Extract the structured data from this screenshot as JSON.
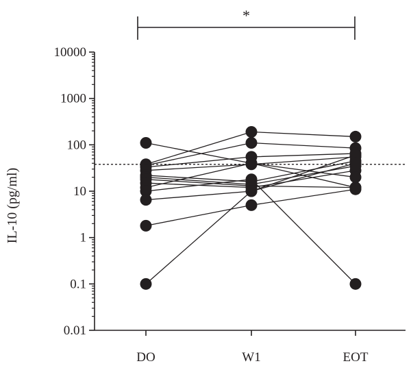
{
  "chart_data": {
    "type": "scatter",
    "ylabel": "IL-10 (pg/ml)",
    "xlabel": "",
    "yscale": "log",
    "ylim": [
      0.01,
      10000
    ],
    "categories": [
      "DO",
      "W1",
      "EOT"
    ],
    "y_ticks": [
      {
        "value": 0.01,
        "label": "0.01"
      },
      {
        "value": 0.1,
        "label": "0.1"
      },
      {
        "value": 1,
        "label": "1"
      },
      {
        "value": 10,
        "label": "10"
      },
      {
        "value": 100,
        "label": "100"
      },
      {
        "value": 1000,
        "label": "1000"
      },
      {
        "value": 10000,
        "label": "10000"
      }
    ],
    "reference_line": {
      "value": 38,
      "style": "dotted"
    },
    "significance": {
      "from": "DO",
      "to": "EOT",
      "label": "*"
    },
    "connected_subjects": [
      [
        110,
        40,
        12
      ],
      [
        38,
        190,
        150
      ],
      [
        36,
        110,
        85
      ],
      [
        33,
        55,
        65
      ],
      [
        28,
        38,
        55
      ],
      [
        22,
        16,
        45
      ],
      [
        20,
        14,
        35
      ],
      [
        18,
        13,
        12
      ],
      [
        15,
        12,
        28
      ],
      [
        12,
        40,
        20
      ],
      [
        10,
        18,
        0.1
      ],
      [
        6.5,
        10,
        60
      ],
      [
        1.8,
        5,
        11
      ],
      [
        0.1,
        10,
        40
      ]
    ],
    "colors": {
      "ink": "#231f20",
      "marker": "#231f20"
    }
  }
}
